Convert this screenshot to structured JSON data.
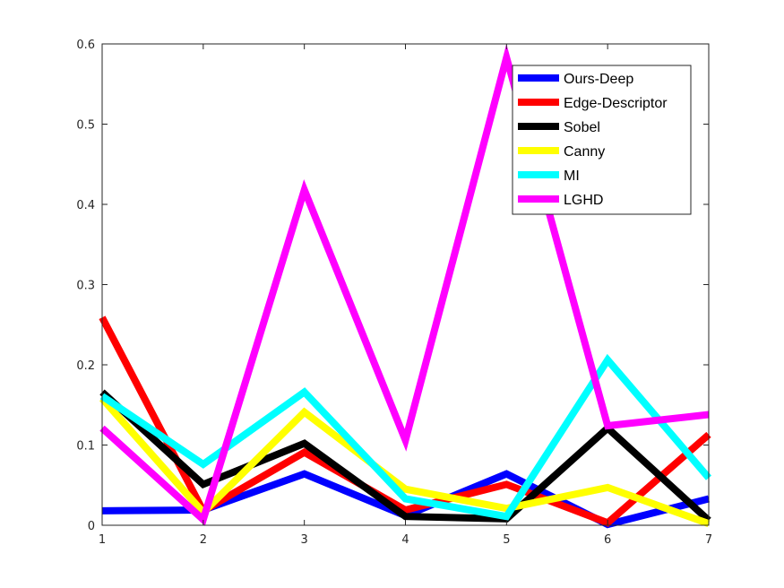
{
  "chart_data": {
    "type": "line",
    "title": "",
    "xlabel": "",
    "ylabel": "",
    "x": [
      1,
      2,
      3,
      4,
      5,
      6,
      7
    ],
    "xlim": [
      1,
      7
    ],
    "ylim": [
      0,
      0.6
    ],
    "xticks": [
      "1",
      "2",
      "3",
      "4",
      "5",
      "6",
      "7"
    ],
    "yticks": [
      "0",
      "0.1",
      "0.2",
      "0.3",
      "0.4",
      "0.5",
      "0.6"
    ],
    "grid": false,
    "legend_position": "top-right",
    "series": [
      {
        "name": "Ours-Deep",
        "color": "#0000ff",
        "values": [
          0.018,
          0.019,
          0.064,
          0.012,
          0.064,
          0.001,
          0.033
        ]
      },
      {
        "name": "Edge-Descriptor",
        "color": "#ff0000",
        "values": [
          0.259,
          0.018,
          0.091,
          0.019,
          0.051,
          0.003,
          0.113
        ]
      },
      {
        "name": "Sobel",
        "color": "#000000",
        "values": [
          0.166,
          0.051,
          0.102,
          0.011,
          0.008,
          0.121,
          0.006
        ]
      },
      {
        "name": "Canny",
        "color": "#ffff00",
        "values": [
          0.158,
          0.016,
          0.141,
          0.045,
          0.021,
          0.047,
          0.002
        ]
      },
      {
        "name": "MI",
        "color": "#00ffff",
        "values": [
          0.161,
          0.076,
          0.166,
          0.033,
          0.011,
          0.206,
          0.059
        ]
      },
      {
        "name": "LGHD",
        "color": "#ff00ff",
        "values": [
          0.121,
          0.007,
          0.418,
          0.106,
          0.583,
          0.124,
          0.138
        ]
      }
    ]
  }
}
